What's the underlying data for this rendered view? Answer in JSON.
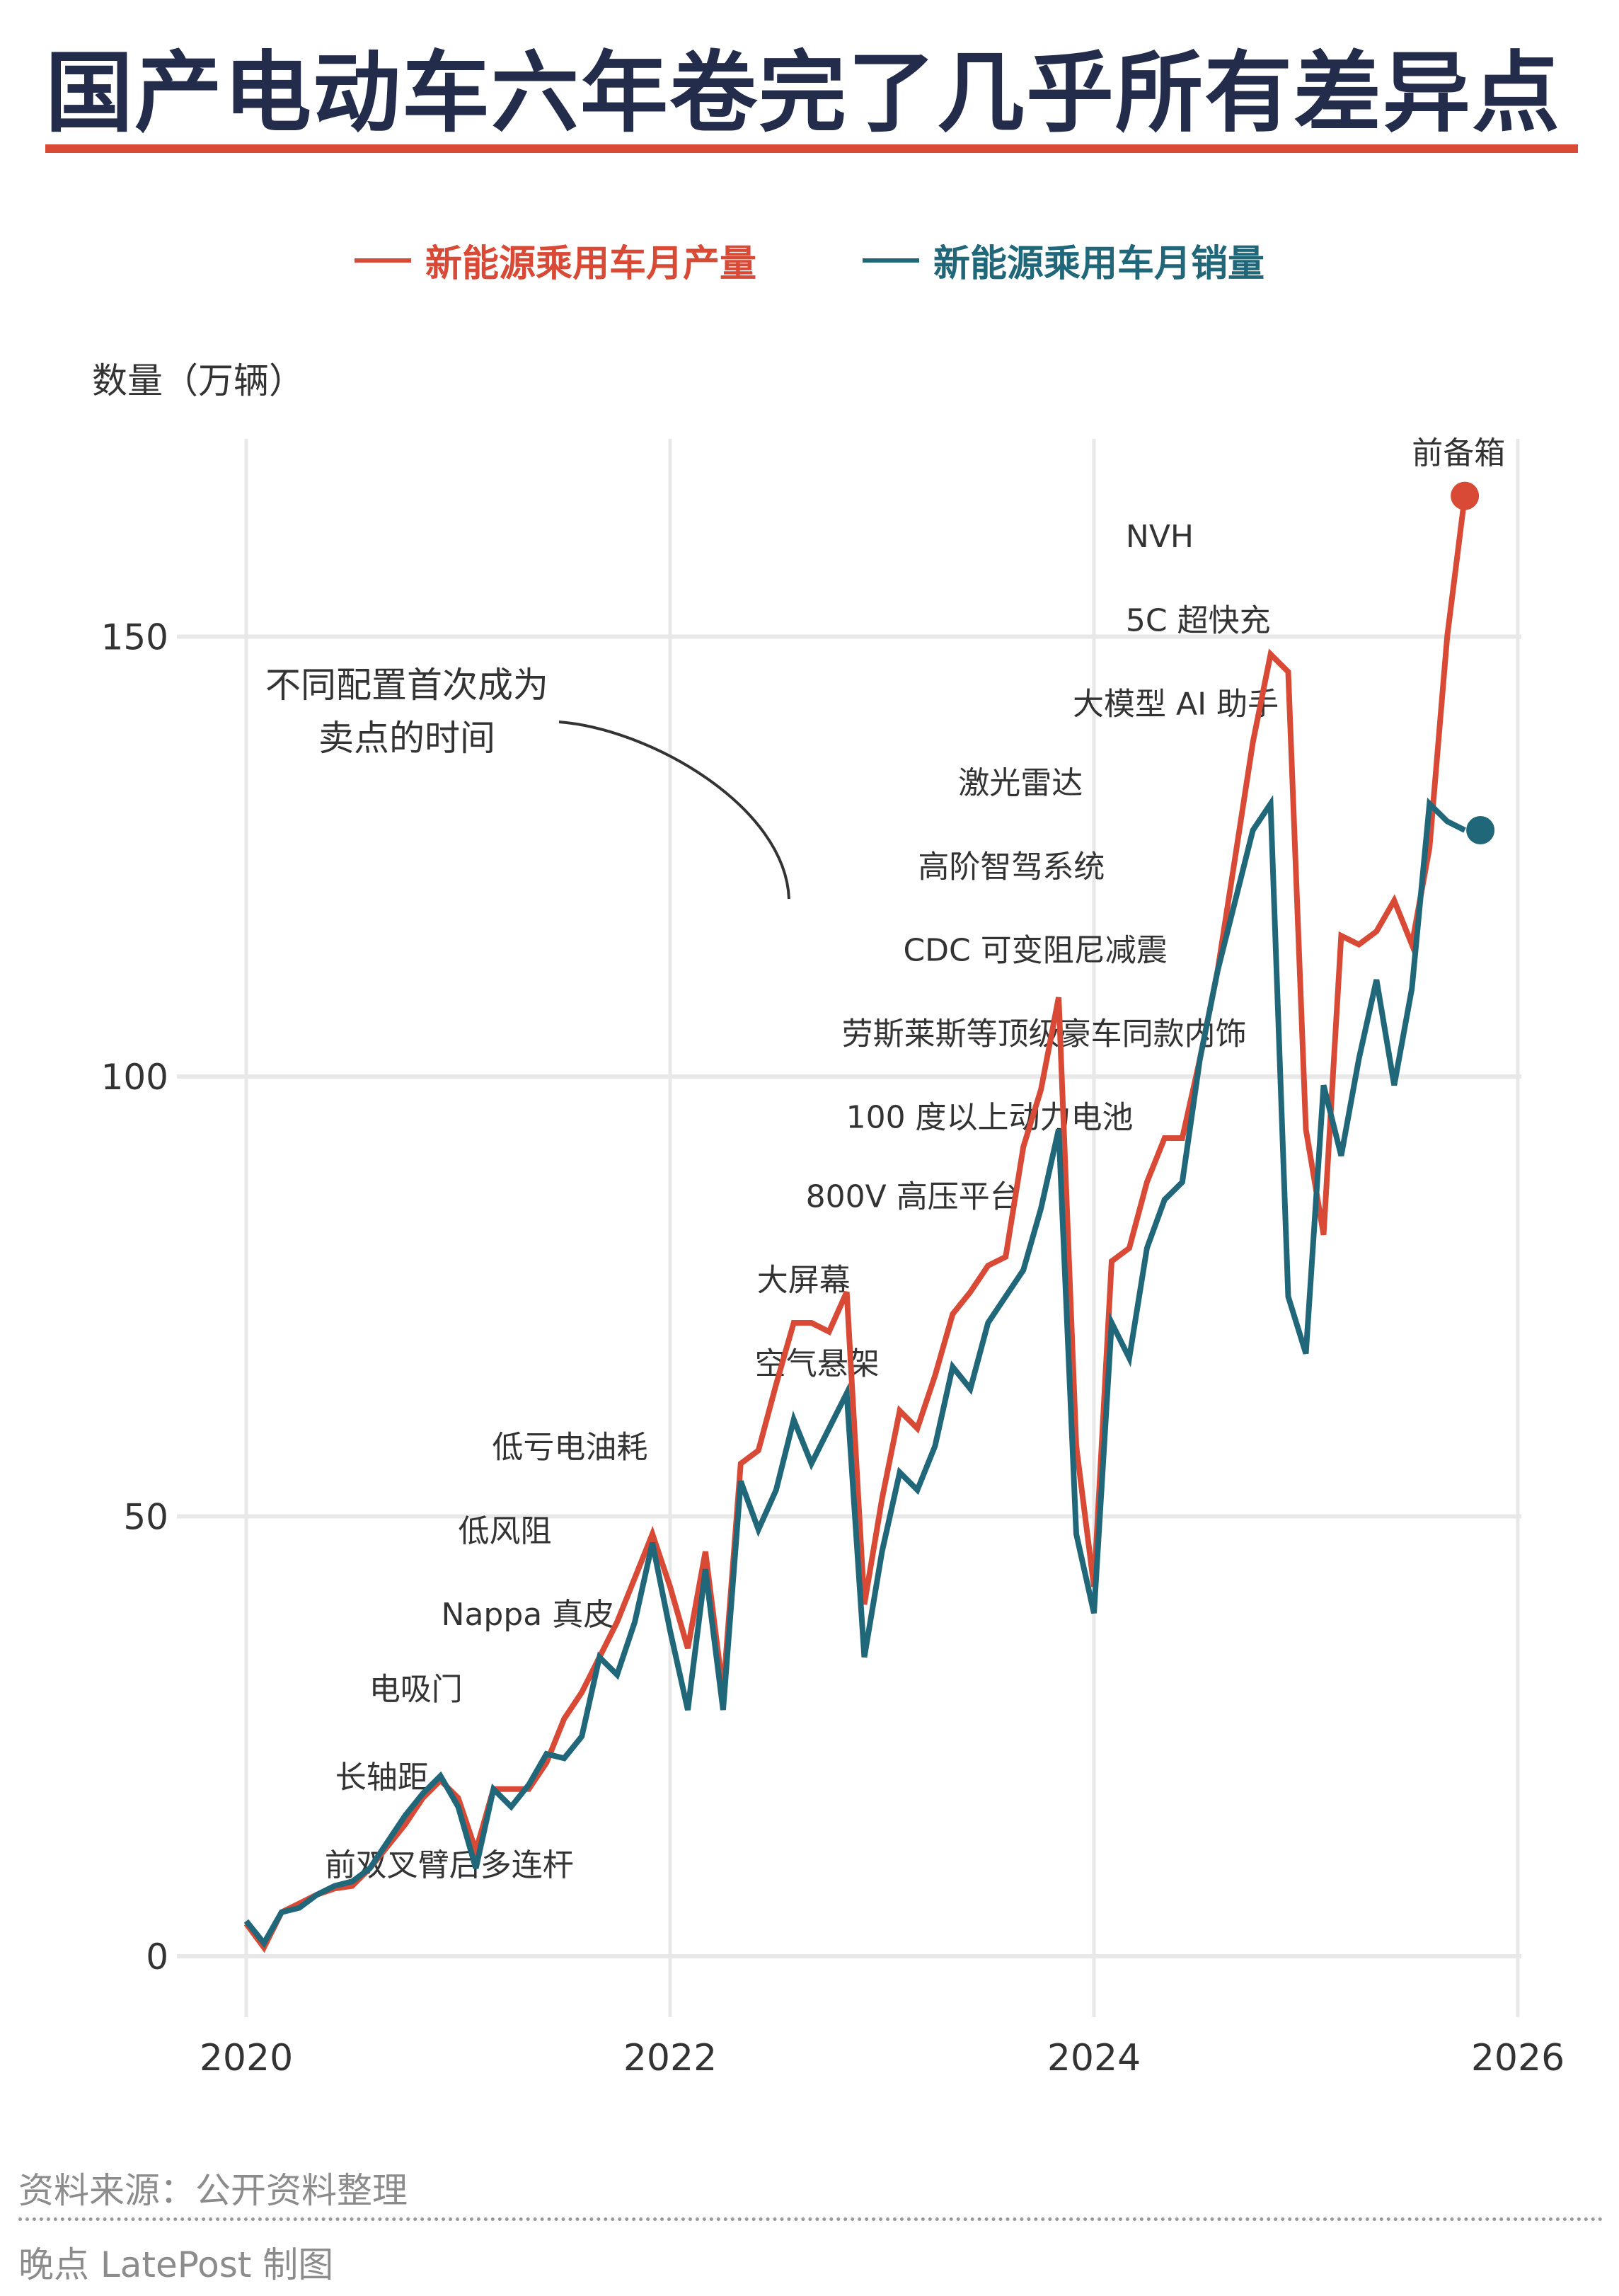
{
  "title": "国产电动车六年卷完了几乎所有差异点",
  "colors": {
    "production": "#d94a36",
    "sales": "#21677a",
    "title": "#232c4b",
    "grid": "#e8e8e8",
    "text": "#333333"
  },
  "legend": [
    {
      "label": "新能源乘用车月产量",
      "color": "#d94a36"
    },
    {
      "label": "新能源乘用车月销量",
      "color": "#21677a"
    }
  ],
  "y_axis_label": "数量（万辆）",
  "callout": {
    "line1": "不同配置首次成为",
    "line2": "卖点的时间"
  },
  "footer": {
    "source": "资料来源：公开资料整理",
    "credit": "晚点 LatePost 制图"
  },
  "chart_data": {
    "type": "line",
    "title": "国产电动车六年卷完了几乎所有差异点",
    "xlabel": "",
    "ylabel": "数量（万辆）",
    "x_ticks": [
      "2020",
      "2022",
      "2024",
      "2026"
    ],
    "y_ticks": [
      0,
      50,
      100,
      150
    ],
    "xlim": [
      2020,
      2026
    ],
    "ylim": [
      0,
      170
    ],
    "grid": true,
    "legend_position": "top",
    "x_start": "2020-01",
    "x_step": "month",
    "series": [
      {
        "name": "新能源乘用车月产量",
        "values": [
          3.7,
          1,
          5,
          6,
          7,
          7.7,
          8,
          10,
          12.5,
          15,
          18,
          20,
          18,
          12,
          19,
          19,
          19,
          22,
          27,
          30,
          34,
          38,
          43,
          48,
          42,
          35,
          46,
          30,
          56,
          57.5,
          65,
          72,
          72,
          71,
          75.5,
          40,
          52,
          62,
          60,
          66,
          73,
          75.5,
          78.5,
          79.5,
          92,
          98.5,
          109,
          58,
          42,
          79,
          80.5,
          88,
          93,
          93,
          102,
          112,
          125,
          138,
          148,
          146,
          94,
          82,
          116,
          115,
          116.5,
          120,
          115,
          126,
          150,
          166
        ]
      },
      {
        "name": "新能源乘用车月销量",
        "values": [
          4,
          1.5,
          5,
          5.5,
          7,
          8,
          8.5,
          10,
          13,
          16,
          18.5,
          20.5,
          17,
          10,
          19,
          17,
          19.5,
          23,
          22.5,
          25,
          34,
          32,
          38,
          47,
          37,
          28,
          44,
          28,
          54,
          48.5,
          53,
          61,
          56,
          60,
          64,
          34,
          46,
          55,
          53,
          58,
          67,
          64.5,
          72,
          75,
          78,
          85,
          94,
          48,
          39,
          72,
          68,
          80.5,
          86,
          88,
          102,
          112,
          120,
          128,
          131,
          75,
          68.5,
          99,
          91,
          102,
          111,
          99,
          110,
          131,
          129,
          128
        ]
      }
    ],
    "endpoint_markers": [
      {
        "series": "新能源乘用车月产量",
        "x": "2025-10",
        "value": 166
      },
      {
        "series": "新能源乘用车月销量",
        "x": "2025-10",
        "value": 128
      }
    ],
    "annotations": [
      {
        "text": "前双叉臂后多连杆",
        "x": 0.37,
        "y": 9
      },
      {
        "text": "长轴距",
        "x": 0.42,
        "y": 19
      },
      {
        "text": "电吸门",
        "x": 0.58,
        "y": 29
      },
      {
        "text": "Nappa 真皮",
        "x": 0.92,
        "y": 37.5
      },
      {
        "text": "低风阻",
        "x": 1.0,
        "y": 47
      },
      {
        "text": "低亏电油耗",
        "x": 1.16,
        "y": 56.5
      },
      {
        "text": "空气悬架",
        "x": 2.4,
        "y": 66
      },
      {
        "text": "大屏幕",
        "x": 2.41,
        "y": 75.5
      },
      {
        "text": "800V 高压平台",
        "x": 2.64,
        "y": 85
      },
      {
        "text": "100 度以上动力电池",
        "x": 2.83,
        "y": 94
      },
      {
        "text": "劳斯莱斯等顶级豪车同款内饰",
        "x": 2.81,
        "y": 103.5
      },
      {
        "text": "CDC 可变阻尼减震",
        "x": 3.1,
        "y": 113
      },
      {
        "text": "高阶智驾系统",
        "x": 3.17,
        "y": 122.5
      },
      {
        "text": "激光雷达",
        "x": 3.36,
        "y": 132
      },
      {
        "text": "大模型 AI 助手",
        "x": 3.9,
        "y": 141
      },
      {
        "text": "5C 超快充",
        "x": 4.15,
        "y": 150.5
      },
      {
        "text": "NVH",
        "x": 4.15,
        "y": 160
      },
      {
        "text": "前备箱",
        "x": 5.5,
        "y": 169.5
      }
    ]
  }
}
